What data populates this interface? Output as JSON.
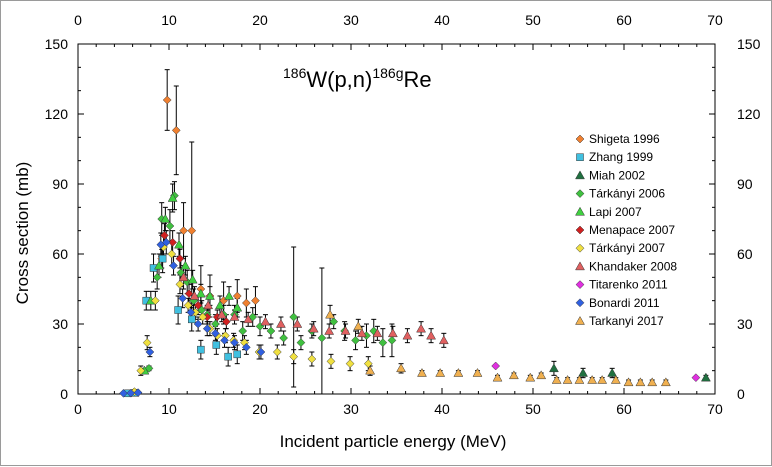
{
  "chart_data": {
    "type": "scatter",
    "title": {
      "mass1": "186",
      "element1": "W(p,n)",
      "mass2": "186g",
      "element2": "Re"
    },
    "xlabel": "Incident particle energy (MeV)",
    "ylabel": "Cross section (mb)",
    "xlim": [
      0,
      70
    ],
    "ylim": [
      0,
      150
    ],
    "xticks": [
      "0",
      "10",
      "20",
      "30",
      "40",
      "50",
      "60",
      "70"
    ],
    "yticks": [
      "0",
      "30",
      "60",
      "90",
      "120",
      "150"
    ],
    "grid": false,
    "legend_position": "right",
    "series": [
      {
        "name": "Shigeta 1996",
        "marker": "diamond",
        "color": "#f08030",
        "points": [
          [
            9.2,
            58,
            4
          ],
          [
            9.8,
            126,
            13
          ],
          [
            10.8,
            113,
            19
          ],
          [
            11.6,
            70,
            12
          ],
          [
            12.5,
            70,
            38
          ],
          [
            13.5,
            45,
            10
          ],
          [
            14.5,
            42,
            9
          ],
          [
            16,
            40,
            8
          ],
          [
            17.5,
            42,
            7
          ],
          [
            18.5,
            39,
            6
          ],
          [
            19.5,
            40,
            6
          ]
        ]
      },
      {
        "name": "Zhang 1999",
        "marker": "square",
        "color": "#40c0e0",
        "points": [
          [
            5.5,
            0.3,
            0
          ],
          [
            6.3,
            0.5,
            0
          ],
          [
            7.5,
            40,
            4
          ],
          [
            8.3,
            54,
            6
          ],
          [
            9.3,
            58,
            6
          ],
          [
            11,
            36,
            6
          ],
          [
            12.5,
            32,
            5
          ],
          [
            13.5,
            19,
            4
          ],
          [
            15.2,
            21,
            4
          ],
          [
            16.5,
            16,
            4
          ],
          [
            17.5,
            17,
            4
          ]
        ]
      },
      {
        "name": "Miah 2002",
        "marker": "triangle",
        "color": "#207040",
        "points": [
          [
            52.3,
            11,
            3
          ],
          [
            55.5,
            9,
            2
          ],
          [
            58.7,
            9,
            2
          ],
          [
            69,
            7,
            1
          ]
        ]
      },
      {
        "name": "Tárkányi  2006",
        "marker": "diamond",
        "color": "#40c040",
        "points": [
          [
            7.8,
            11,
            1
          ],
          [
            8.7,
            50,
            5
          ],
          [
            9.2,
            75,
            7
          ],
          [
            10.1,
            72,
            7
          ],
          [
            10.6,
            85,
            6
          ],
          [
            11.3,
            52,
            6
          ],
          [
            12,
            48,
            5
          ],
          [
            12.7,
            40,
            5
          ],
          [
            13.6,
            36,
            4
          ],
          [
            14.2,
            34,
            4
          ],
          [
            15.1,
            30,
            4
          ],
          [
            16,
            34,
            4
          ],
          [
            17.2,
            34,
            4
          ],
          [
            18.1,
            27,
            4
          ],
          [
            19.2,
            33,
            4
          ],
          [
            20,
            29,
            4
          ],
          [
            21.2,
            27,
            3
          ],
          [
            22.6,
            24,
            3
          ],
          [
            23.7,
            33,
            30
          ],
          [
            24.5,
            22,
            3
          ],
          [
            25.7,
            27,
            3
          ],
          [
            26.8,
            24,
            30
          ],
          [
            28.1,
            31,
            3
          ],
          [
            29.3,
            27,
            4
          ],
          [
            30.5,
            23,
            4
          ],
          [
            31.7,
            25,
            5
          ],
          [
            32.5,
            27,
            5
          ],
          [
            33.5,
            22,
            6
          ],
          [
            34.5,
            23,
            7
          ]
        ]
      },
      {
        "name": "Lapi  2007",
        "marker": "triangle",
        "color": "#40d040",
        "points": [
          [
            7.3,
            10,
            1
          ],
          [
            8,
            40,
            4
          ],
          [
            8.9,
            55,
            5
          ],
          [
            9.6,
            75,
            5
          ],
          [
            10.4,
            84,
            6
          ],
          [
            11.1,
            64,
            5
          ],
          [
            11.8,
            55,
            4
          ],
          [
            12.6,
            49,
            4
          ],
          [
            13.5,
            43,
            4
          ],
          [
            14.5,
            42,
            4
          ],
          [
            15.6,
            38,
            4
          ],
          [
            16.6,
            42,
            4
          ],
          [
            17.5,
            37,
            4
          ]
        ]
      },
      {
        "name": "Menapace  2007",
        "marker": "diamond",
        "color": "#d02020",
        "points": [
          [
            9.5,
            68,
            5
          ],
          [
            10.4,
            65,
            5
          ],
          [
            11.2,
            58,
            4
          ],
          [
            12.2,
            43,
            4
          ],
          [
            13.2,
            38,
            4
          ],
          [
            14.2,
            33,
            3
          ],
          [
            15.3,
            33,
            3
          ],
          [
            16.3,
            31,
            3
          ]
        ]
      },
      {
        "name": "Tárkányi  2007",
        "marker": "diamond",
        "color": "#f0e040",
        "points": [
          [
            6.2,
            1,
            0
          ],
          [
            6.9,
            10,
            2
          ],
          [
            7.6,
            22,
            3
          ],
          [
            8.5,
            40,
            4
          ],
          [
            9.4,
            63,
            5
          ],
          [
            10.3,
            60,
            5
          ],
          [
            11.2,
            47,
            4
          ],
          [
            12.1,
            38,
            3
          ],
          [
            12.9,
            35,
            3
          ],
          [
            13.7,
            33,
            3
          ],
          [
            14.5,
            28,
            3
          ],
          [
            15.3,
            25,
            3
          ],
          [
            16.2,
            25,
            3
          ],
          [
            17.1,
            23,
            3
          ],
          [
            18.3,
            22,
            3
          ],
          [
            19.9,
            18,
            3
          ],
          [
            21.9,
            18,
            3
          ],
          [
            23.7,
            16,
            3
          ],
          [
            25.7,
            15,
            3
          ],
          [
            27.8,
            14,
            3
          ],
          [
            29.9,
            13,
            3
          ],
          [
            31.9,
            13,
            3
          ]
        ]
      },
      {
        "name": "Khandaker 2008",
        "marker": "triangle",
        "color": "#e06060",
        "points": [
          [
            11.6,
            50,
            5
          ],
          [
            12.8,
            42,
            4
          ],
          [
            14.3,
            38,
            4
          ],
          [
            15.8,
            34,
            3
          ],
          [
            17.2,
            33,
            3
          ],
          [
            18.7,
            32,
            3
          ],
          [
            20.6,
            31,
            3
          ],
          [
            22.3,
            30,
            3
          ],
          [
            24.1,
            30,
            3
          ],
          [
            25.9,
            28,
            3
          ],
          [
            27.6,
            27,
            3
          ],
          [
            29.4,
            27,
            3
          ],
          [
            31.2,
            26,
            3
          ],
          [
            32.9,
            26,
            3
          ],
          [
            34.6,
            26,
            3
          ],
          [
            36.2,
            25,
            3
          ],
          [
            37.7,
            28,
            3
          ],
          [
            38.8,
            25,
            3
          ],
          [
            40.2,
            23,
            3
          ]
        ]
      },
      {
        "name": "Titarenko 2011",
        "marker": "diamond",
        "color": "#e030e0",
        "points": [
          [
            45.9,
            12,
            0
          ],
          [
            67.9,
            7,
            0
          ]
        ]
      },
      {
        "name": "Bonardi 2011",
        "marker": "diamond",
        "color": "#3060e0",
        "points": [
          [
            5,
            0.3,
            0
          ],
          [
            5.8,
            0.4,
            0
          ],
          [
            6.6,
            0.6,
            0
          ],
          [
            7.9,
            18,
            2
          ],
          [
            9.1,
            64,
            5
          ],
          [
            9.7,
            65,
            5
          ],
          [
            10.5,
            55,
            4
          ],
          [
            11.5,
            41,
            4
          ],
          [
            12.4,
            35,
            3
          ],
          [
            13.2,
            30,
            3
          ],
          [
            14.2,
            28,
            3
          ],
          [
            15.1,
            26,
            3
          ],
          [
            16.1,
            23,
            3
          ],
          [
            17.2,
            22,
            3
          ],
          [
            18.5,
            20,
            3
          ],
          [
            20.1,
            18,
            3
          ]
        ]
      },
      {
        "name": "Tarkanyi 2017",
        "marker": "triangle",
        "color": "#f0b050",
        "points": [
          [
            27.7,
            34,
            4
          ],
          [
            30.8,
            29,
            3
          ],
          [
            32.1,
            10,
            2
          ],
          [
            35.5,
            11,
            2
          ],
          [
            37.8,
            9,
            1
          ],
          [
            39.8,
            9,
            1
          ],
          [
            41.8,
            9,
            1
          ],
          [
            43.9,
            9,
            1
          ],
          [
            46.1,
            7,
            1
          ],
          [
            47.9,
            8,
            1
          ],
          [
            49.7,
            7,
            1
          ],
          [
            50.9,
            8,
            1
          ],
          [
            52.6,
            6,
            1
          ],
          [
            53.8,
            6,
            1
          ],
          [
            55.1,
            6,
            1
          ],
          [
            56.5,
            6,
            1
          ],
          [
            57.6,
            6,
            1
          ],
          [
            59.1,
            6,
            1
          ],
          [
            60.5,
            5,
            1
          ],
          [
            61.8,
            5,
            1
          ],
          [
            63.1,
            5,
            1
          ],
          [
            64.6,
            5,
            1
          ]
        ]
      }
    ]
  }
}
